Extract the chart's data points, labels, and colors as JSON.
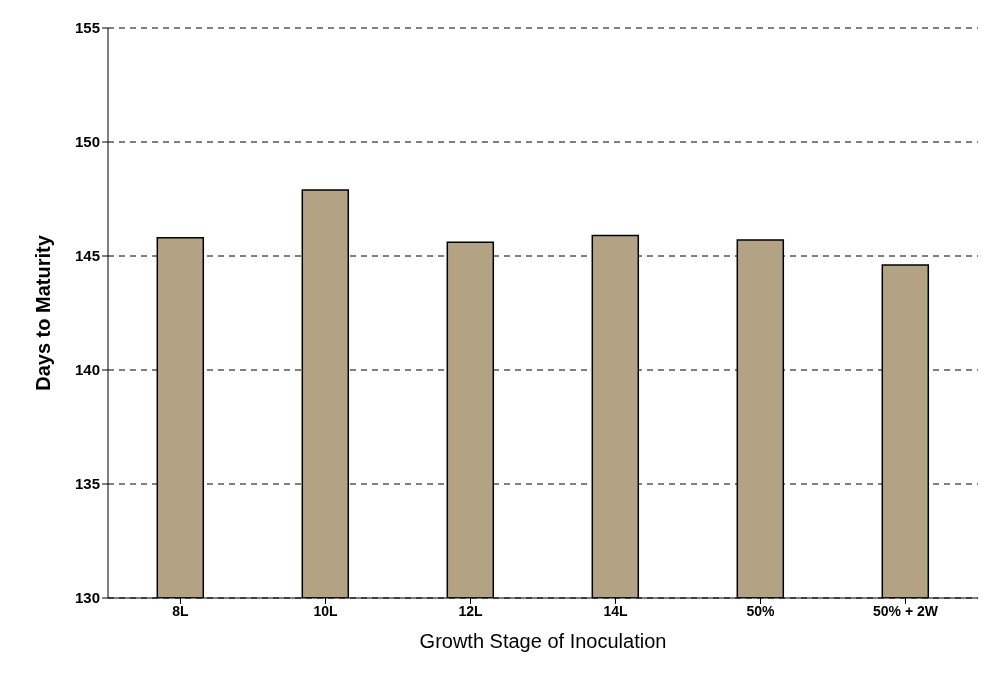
{
  "chart_data": {
    "type": "bar",
    "xlabel": "Growth Stage of Inoculation",
    "ylabel": "Days to Maturity",
    "categories": [
      "8L",
      "10L",
      "12L",
      "14L",
      "50%",
      "50% + 2W"
    ],
    "values": [
      145.8,
      147.9,
      145.6,
      145.9,
      145.7,
      144.6
    ],
    "color": "#b3a384",
    "ylim": [
      130,
      155
    ],
    "yticks": [
      130,
      135,
      140,
      145,
      150,
      155
    ],
    "grid": "y"
  }
}
